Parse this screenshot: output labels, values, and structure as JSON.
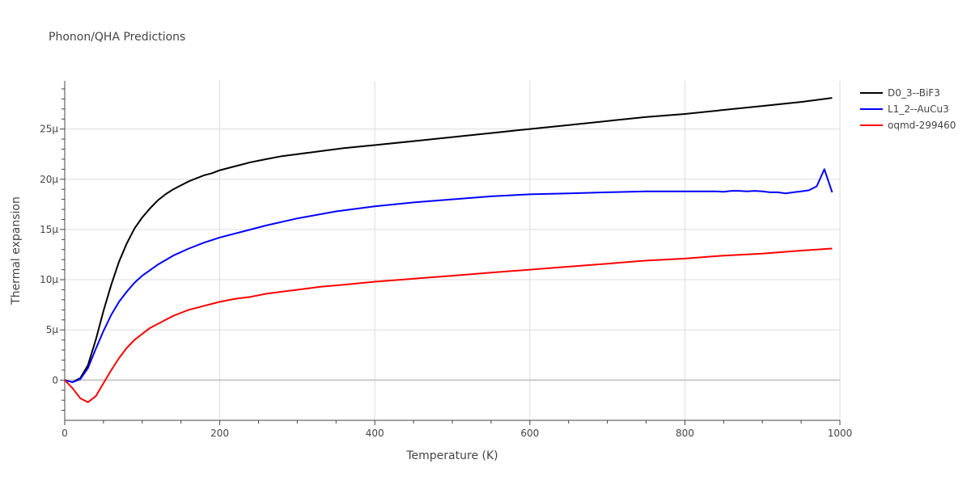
{
  "chart_data": {
    "type": "line",
    "title": "Phonon/QHA Predictions",
    "xlabel": "Temperature (K)",
    "ylabel": "Thermal expansion",
    "xlim": [
      0,
      1000
    ],
    "ylim": [
      -4e-06,
      2.98e-05
    ],
    "grid": true,
    "legend_position": "top-right",
    "x_ticks": [
      {
        "value": 0,
        "label": "0"
      },
      {
        "value": 200,
        "label": "200"
      },
      {
        "value": 400,
        "label": "400"
      },
      {
        "value": 600,
        "label": "600"
      },
      {
        "value": 800,
        "label": "800"
      },
      {
        "value": 1000,
        "label": "1000"
      }
    ],
    "y_ticks": [
      {
        "value": 0,
        "label": "0"
      },
      {
        "value": 5e-06,
        "label": "5μ"
      },
      {
        "value": 1e-05,
        "label": "10μ"
      },
      {
        "value": 1.5e-05,
        "label": "15μ"
      },
      {
        "value": 2e-05,
        "label": "20μ"
      },
      {
        "value": 2.5e-05,
        "label": "25μ"
      }
    ],
    "series": [
      {
        "name": "D0_3--BiF3",
        "color": "#000000",
        "x": [
          0,
          10,
          20,
          30,
          40,
          50,
          60,
          70,
          80,
          90,
          100,
          110,
          120,
          130,
          140,
          150,
          160,
          170,
          180,
          190,
          200,
          220,
          240,
          260,
          280,
          300,
          330,
          360,
          400,
          450,
          500,
          550,
          600,
          650,
          700,
          750,
          800,
          850,
          900,
          950,
          990
        ],
        "y": [
          0,
          -2e-07,
          2e-07,
          1.5e-06,
          4e-06,
          6.9e-06,
          9.5e-06,
          1.18e-05,
          1.36e-05,
          1.51e-05,
          1.62e-05,
          1.71e-05,
          1.79e-05,
          1.85e-05,
          1.9e-05,
          1.94e-05,
          1.98e-05,
          2.01e-05,
          2.04e-05,
          2.06e-05,
          2.09e-05,
          2.13e-05,
          2.17e-05,
          2.2e-05,
          2.23e-05,
          2.25e-05,
          2.28e-05,
          2.31e-05,
          2.34e-05,
          2.38e-05,
          2.42e-05,
          2.46e-05,
          2.5e-05,
          2.54e-05,
          2.58e-05,
          2.62e-05,
          2.65e-05,
          2.69e-05,
          2.73e-05,
          2.77e-05,
          2.81e-05
        ]
      },
      {
        "name": "L1_2--AuCu3",
        "color": "#0000ff",
        "x": [
          0,
          10,
          20,
          30,
          40,
          50,
          60,
          70,
          80,
          90,
          100,
          120,
          140,
          160,
          180,
          200,
          230,
          260,
          300,
          350,
          400,
          450,
          500,
          550,
          600,
          650,
          700,
          750,
          800,
          840,
          850,
          860,
          870,
          880,
          890,
          900,
          910,
          920,
          930,
          940,
          950,
          960,
          970,
          980,
          990
        ],
        "y": [
          0,
          -2e-07,
          1e-07,
          1.2e-06,
          3.1e-06,
          4.9e-06,
          6.5e-06,
          7.8e-06,
          8.8e-06,
          9.7e-06,
          1.04e-05,
          1.15e-05,
          1.24e-05,
          1.31e-05,
          1.37e-05,
          1.42e-05,
          1.48e-05,
          1.54e-05,
          1.61e-05,
          1.68e-05,
          1.73e-05,
          1.77e-05,
          1.8e-05,
          1.83e-05,
          1.85e-05,
          1.86e-05,
          1.87e-05,
          1.88e-05,
          1.88e-05,
          1.88e-05,
          1.875e-05,
          1.885e-05,
          1.885e-05,
          1.88e-05,
          1.885e-05,
          1.88e-05,
          1.87e-05,
          1.87e-05,
          1.86e-05,
          1.87e-05,
          1.88e-05,
          1.89e-05,
          1.93e-05,
          2.1e-05,
          1.87e-05
        ]
      },
      {
        "name": "oqmd-299460",
        "color": "#ff0000",
        "x": [
          0,
          10,
          20,
          30,
          40,
          50,
          60,
          70,
          80,
          90,
          100,
          110,
          120,
          130,
          140,
          150,
          160,
          170,
          180,
          190,
          200,
          220,
          240,
          260,
          280,
          300,
          330,
          360,
          400,
          450,
          500,
          550,
          600,
          650,
          700,
          750,
          800,
          850,
          900,
          950,
          990
        ],
        "y": [
          0,
          -8e-07,
          -1.8e-06,
          -2.2e-06,
          -1.6e-06,
          -3e-07,
          1e-06,
          2.2e-06,
          3.2e-06,
          4e-06,
          4.6e-06,
          5.2e-06,
          5.6e-06,
          6e-06,
          6.4e-06,
          6.7e-06,
          7e-06,
          7.2e-06,
          7.4e-06,
          7.6e-06,
          7.8e-06,
          8.1e-06,
          8.3e-06,
          8.6e-06,
          8.8e-06,
          9e-06,
          9.3e-06,
          9.5e-06,
          9.8e-06,
          1.01e-05,
          1.04e-05,
          1.07e-05,
          1.1e-05,
          1.13e-05,
          1.16e-05,
          1.19e-05,
          1.21e-05,
          1.24e-05,
          1.26e-05,
          1.29e-05,
          1.31e-05
        ]
      }
    ]
  }
}
